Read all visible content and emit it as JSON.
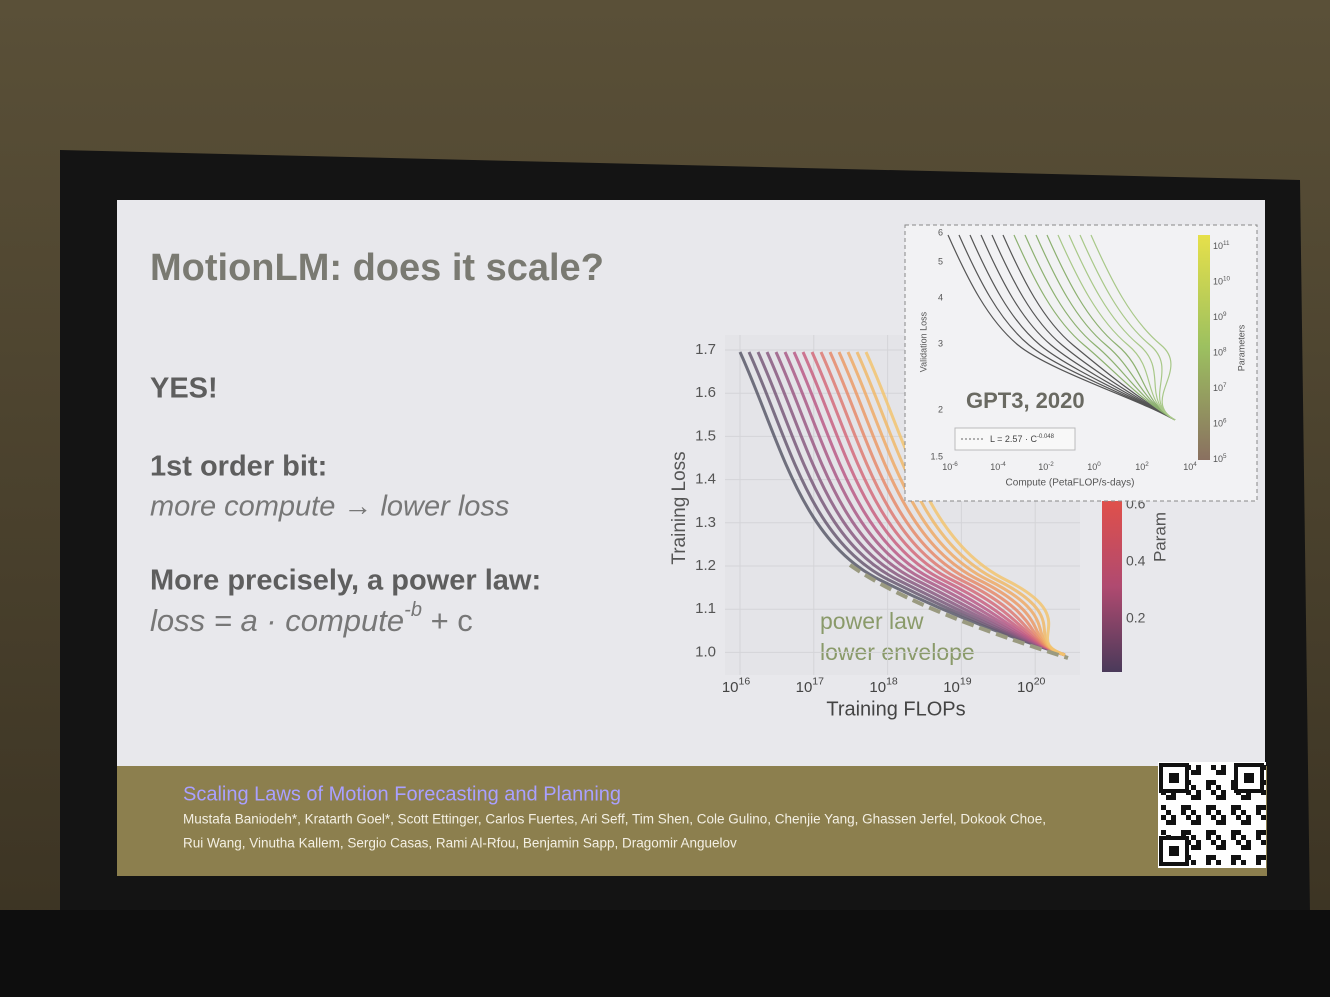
{
  "slide": {
    "title": "MotionLM: does it scale?",
    "yes": "YES!",
    "point1_heading": "1st order bit:",
    "point1_text": "more compute → lower loss",
    "point2_heading": "More precisely, a power law:",
    "formula": {
      "lhs": "loss = a · compute",
      "exponent": "-b",
      "rhs": " + c"
    }
  },
  "main_plot": {
    "ylabel": "Training Loss",
    "xlabel": "Training FLOPs",
    "yticks": [
      "1.7",
      "1.6",
      "1.5",
      "1.4",
      "1.3",
      "1.2",
      "1.1",
      "1.0"
    ],
    "xticks": [
      {
        "base": "10",
        "exp": "16"
      },
      {
        "base": "10",
        "exp": "17"
      },
      {
        "base": "10",
        "exp": "18"
      },
      {
        "base": "10",
        "exp": "19"
      },
      {
        "base": "10",
        "exp": "20"
      }
    ],
    "annotation": [
      "power law",
      "lower envelope"
    ],
    "colorbar_ticks": [
      "0.6",
      "0.4",
      "0.2"
    ],
    "colorbar_label": "Param"
  },
  "inset": {
    "title": "GPT3, 2020",
    "ylabel": "Validation Loss",
    "xlabel": "Compute (PetaFLOP/s-days)",
    "yticks": [
      "6",
      "5",
      "4",
      "3",
      "2",
      "1.5"
    ],
    "xticks": [
      {
        "base": "10",
        "exp": "-6"
      },
      {
        "base": "10",
        "exp": "-4"
      },
      {
        "base": "10",
        "exp": "-2"
      },
      {
        "base": "10",
        "exp": "0"
      },
      {
        "base": "10",
        "exp": "2"
      },
      {
        "base": "10",
        "exp": "4"
      }
    ],
    "legend": {
      "text": "L = 2.57 · C",
      "exp": "-0.048"
    },
    "colorbar_ticks": [
      {
        "base": "10",
        "exp": "11"
      },
      {
        "base": "10",
        "exp": "10"
      },
      {
        "base": "10",
        "exp": "9"
      },
      {
        "base": "10",
        "exp": "8"
      },
      {
        "base": "10",
        "exp": "7"
      },
      {
        "base": "10",
        "exp": "6"
      },
      {
        "base": "10",
        "exp": "5"
      }
    ],
    "colorbar_label": "Parameters"
  },
  "footer": {
    "paper_title": "Scaling Laws of Motion Forecasting and Planning",
    "authors_line1": "Mustafa Baniodeh*, Kratarth Goel*, Scott Ettinger, Carlos Fuertes, Ari Seff, Tim Shen, Cole Gulino, Chenjie Yang, Ghassen Jerfel, Dokook Choe,",
    "authors_line2": "Rui Wang, Vinutha Kallem, Sergio Casas, Rami Al-Rfou, Benjamin Sapp, Dragomir Anguelov"
  }
}
